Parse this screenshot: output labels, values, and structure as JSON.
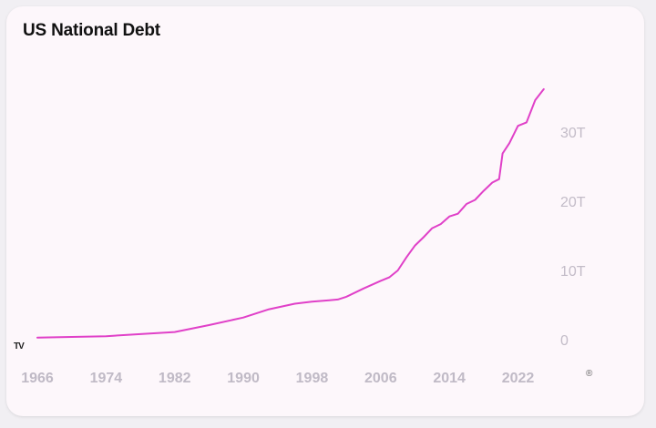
{
  "chart_data": {
    "type": "line",
    "title": "US National Debt",
    "xlabel": "",
    "ylabel": "",
    "x_ticks": [
      "1966",
      "1974",
      "1982",
      "1990",
      "1998",
      "2006",
      "2014",
      "2022"
    ],
    "y_ticks": [
      {
        "value": 0,
        "label": "0"
      },
      {
        "value": 10,
        "label": "10T"
      },
      {
        "value": 20,
        "label": "20T"
      },
      {
        "value": 30,
        "label": "30T"
      }
    ],
    "xlim": [
      1966,
      2030
    ],
    "ylim": [
      0,
      36
    ],
    "grid": false,
    "y_axis_position": "right",
    "series": [
      {
        "color": "#e040c8",
        "x": [
          1966,
          1970,
          1974,
          1978,
          1982,
          1986,
          1990,
          1993,
          1996,
          1998,
          2000,
          2001,
          2002,
          2004,
          2006,
          2007,
          2008,
          2009,
          2010,
          2011,
          2012,
          2013,
          2014,
          2015,
          2016,
          2017,
          2018,
          2019,
          2019.8,
          2020.2,
          2021,
          2022,
          2023,
          2024,
          2025
        ],
        "y": [
          0.3,
          0.4,
          0.5,
          0.8,
          1.1,
          2.1,
          3.2,
          4.4,
          5.2,
          5.5,
          5.7,
          5.8,
          6.2,
          7.4,
          8.5,
          9.0,
          10.0,
          11.9,
          13.6,
          14.8,
          16.1,
          16.7,
          17.8,
          18.2,
          19.6,
          20.2,
          21.5,
          22.7,
          23.2,
          26.9,
          28.4,
          30.9,
          31.4,
          34.6,
          36.2
        ]
      }
    ]
  },
  "branding": {
    "logo_text": "TV",
    "registered_mark": "®"
  }
}
